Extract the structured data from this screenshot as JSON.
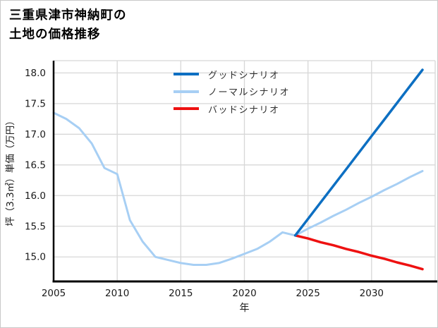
{
  "title": {
    "line1": "三重県津市神納町の",
    "line2": "土地の価格推移",
    "full": "三重県津市神納町の土地の価格推移"
  },
  "axes": {
    "x_label": "年",
    "y_label": "坪（3.3㎡）単価（万円）",
    "x_ticks": [
      "2005",
      "2010",
      "2015",
      "2020",
      "2025",
      "2030"
    ],
    "y_ticks": [
      "15.0",
      "15.5",
      "16.0",
      "16.5",
      "17.0",
      "17.5",
      "18.0"
    ]
  },
  "legend": [
    {
      "label": "グッドシナリオ",
      "color": "#0d6fc2"
    },
    {
      "label": "ノーマルシナリオ",
      "color": "#a7cff4"
    },
    {
      "label": "バッドシナリオ",
      "color": "#ee1111"
    }
  ],
  "colors": {
    "background": "#ffffff",
    "frame_border": "#c9c9c9",
    "grid": "#d7d7d7",
    "spine": "#000000",
    "tick_label": "#1a1a1a",
    "good": "#0d6fc2",
    "normal": "#a7cff4",
    "bad": "#ee1111"
  },
  "chart_data": {
    "type": "line",
    "title": "三重県津市神納町の土地の価格推移",
    "xlabel": "年",
    "ylabel": "坪（3.3㎡）単価（万円）",
    "xlim": [
      2005,
      2035
    ],
    "ylim": [
      14.6,
      18.2
    ],
    "grid": true,
    "x_tick_values": [
      2005,
      2010,
      2015,
      2020,
      2025,
      2030
    ],
    "y_tick_values": [
      15.0,
      15.5,
      16.0,
      16.5,
      17.0,
      17.5,
      18.0
    ],
    "legend_position": "inside upper-center",
    "series": [
      {
        "name": "ノーマルシナリオ",
        "key": "normal",
        "color": "#a7cff4",
        "width": 3,
        "x": [
          2005,
          2006,
          2007,
          2008,
          2009,
          2010,
          2011,
          2012,
          2013,
          2014,
          2015,
          2016,
          2017,
          2018,
          2019,
          2020,
          2021,
          2022,
          2023,
          2024,
          2025,
          2026,
          2027,
          2028,
          2029,
          2030,
          2031,
          2032,
          2033,
          2034
        ],
        "y": [
          17.35,
          17.25,
          17.1,
          16.85,
          16.45,
          16.35,
          15.6,
          15.25,
          15.0,
          14.95,
          14.9,
          14.87,
          14.87,
          14.9,
          14.97,
          15.05,
          15.13,
          15.25,
          15.4,
          15.35,
          15.46,
          15.56,
          15.67,
          15.77,
          15.88,
          15.98,
          16.09,
          16.19,
          16.3,
          16.4
        ]
      },
      {
        "name": "バッドシナリオ",
        "key": "bad",
        "color": "#ee1111",
        "width": 3.5,
        "x": [
          2024,
          2025,
          2026,
          2027,
          2028,
          2029,
          2030,
          2031,
          2032,
          2033,
          2034
        ],
        "y": [
          15.35,
          15.3,
          15.24,
          15.19,
          15.13,
          15.08,
          15.02,
          14.97,
          14.91,
          14.86,
          14.8
        ]
      },
      {
        "name": "グッドシナリオ",
        "key": "good",
        "color": "#0d6fc2",
        "width": 3.5,
        "x": [
          2024,
          2025,
          2026,
          2027,
          2028,
          2029,
          2030,
          2031,
          2032,
          2033,
          2034
        ],
        "y": [
          15.35,
          15.62,
          15.89,
          16.16,
          16.43,
          16.7,
          16.97,
          17.24,
          17.51,
          17.78,
          18.05
        ]
      }
    ]
  }
}
